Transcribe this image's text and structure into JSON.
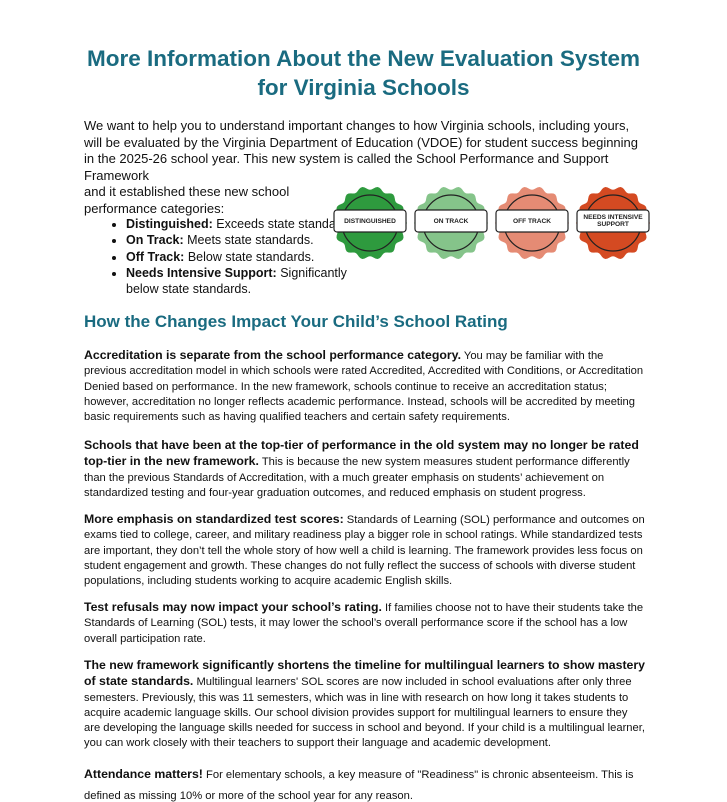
{
  "title_line1": "More Information About the New Evaluation System",
  "title_line2": "for Virginia Schools",
  "intro": {
    "text": "We want to help you to understand important changes to how Virginia schools, including yours, will be evaluated by the Virginia Department of Education (VDOE) for student success beginning in the 2025-26 school year. This new system is called the School Performance and Support Framework",
    "line2": "and it established these new school",
    "line3": "performance categories:"
  },
  "categories": [
    {
      "name": "Distinguished:",
      "desc": " Exceeds state standards."
    },
    {
      "name": "On Track:",
      "desc": " Meets state standards."
    },
    {
      "name": "Off Track:",
      "desc": " Below state standards."
    },
    {
      "name": "Needs Intensive Support:",
      "desc": " Significantly below state standards."
    }
  ],
  "badges": [
    {
      "label": "DISTINGUISHED",
      "color": "#2e9a3e"
    },
    {
      "label": "ON TRACK",
      "color": "#85c48a"
    },
    {
      "label": "OFF TRACK",
      "color": "#e58b74"
    },
    {
      "label": "NEEDS INTENSIVE SUPPORT",
      "color": "#d44a22"
    }
  ],
  "section_heading": "How the Changes Impact Your Child’s School Rating",
  "paragraphs": [
    {
      "bold": "Accreditation is separate from the school performance category.",
      "text": " You may be familiar with the previous accreditation model in which schools were rated Accredited, Accredited with Conditions, or Accreditation Denied based on performance. In the new framework, schools continue to receive an accreditation status; however, accreditation no longer reflects academic performance. Instead, schools will be accredited by meeting basic requirements such as having qualified teachers and certain safety requirements."
    },
    {
      "bold": "Schools that have been at the top-tier of performance in the old system may no longer be rated top-tier in the new framework.",
      "text": " This is because the new system measures student performance differently than the previous Standards of Accreditation, with a much greater emphasis on students’ achievement on standardized testing and four-year graduation outcomes, and reduced emphasis on student progress."
    },
    {
      "bold": "More emphasis on standardized test scores:",
      "text": " Standards of Learning (SOL) performance and outcomes on exams tied to college, career, and military readiness play a bigger role in school ratings. While standardized tests are important, they don’t tell the whole story of how well a child is learning. The framework provides less focus on student engagement and growth. These changes do not fully reflect the success of schools with diverse student populations, including students working to acquire academic English skills."
    },
    {
      "bold": "Test refusals may now impact your school’s rating.",
      "text": " If families choose not to have their students take the Standards of Learning (SOL) tests, it may lower the school’s overall performance score if the school has a low overall participation rate."
    },
    {
      "bold": "The new framework significantly shortens the timeline for multilingual learners to show mastery of state standards.",
      "text": " Multilingual learners' SOL scores are now included in school evaluations after only three semesters. Previously, this was 11 semesters, which was in line with research on how long it takes students to acquire academic language skills. Our school division provides support for multilingual learners to ensure they are developing the language skills needed for success in school and beyond. If your child is a multilingual learner, you can work closely with their teachers to support their language and academic development."
    },
    {
      "bold": "Attendance matters!",
      "text": "  For elementary schools, a key measure of \"Readiness\" is chronic absenteeism. This is defined as missing 10% or more of the school year for any reason."
    }
  ]
}
